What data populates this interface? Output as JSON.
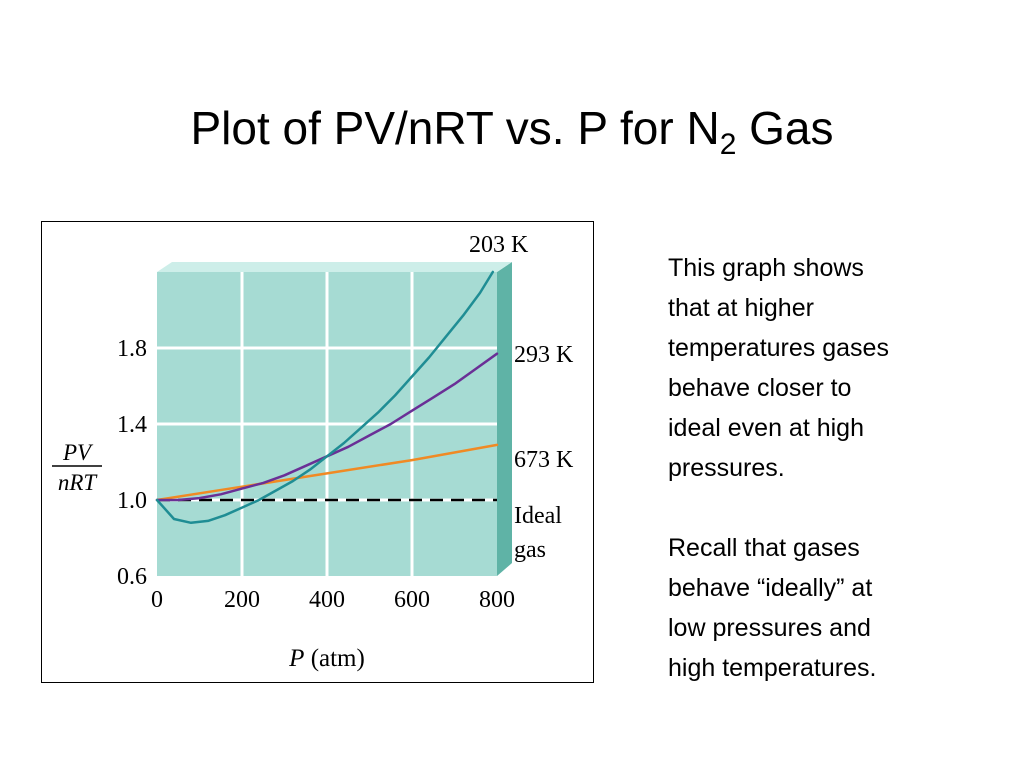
{
  "slide": {
    "title_main": "Plot of PV/nRT vs. P for N",
    "title_sub": "2",
    "title_tail": " Gas"
  },
  "body": {
    "para1": "This graph shows\nthat at higher\ntemperatures gases\nbehave closer to\nideal even at high\npressures.",
    "para2": "Recall that gases\nbehave “ideally” at\nlow pressures and\nhigh temperatures."
  },
  "colors": {
    "plot_bg": "#a6dbd3",
    "panel_dark": "#5fb3a6",
    "grid": "#ffffff",
    "ideal": "#000000"
  },
  "chart_data": {
    "type": "line",
    "title": "",
    "xlabel": "P (atm)",
    "ylabel": "PV/nRT",
    "ylabel_num": "PV",
    "ylabel_den": "nRT",
    "xlabel_italic": "P",
    "xlabel_unit": " (atm)",
    "xlim": [
      0,
      800
    ],
    "ylim": [
      0.6,
      2.2
    ],
    "xticks": [
      "0",
      "200",
      "400",
      "600",
      "800"
    ],
    "yticks": [
      "0.6",
      "1.0",
      "1.4",
      "1.8"
    ],
    "grid": true,
    "series": [
      {
        "name": "203 K",
        "color": "#1f8d94",
        "x": [
          0,
          40,
          80,
          120,
          160,
          200,
          240,
          280,
          320,
          360,
          400,
          440,
          480,
          520,
          560,
          600,
          640,
          680,
          720,
          760,
          790
        ],
        "y": [
          1.0,
          0.9,
          0.88,
          0.89,
          0.92,
          0.96,
          1.0,
          1.05,
          1.1,
          1.16,
          1.23,
          1.3,
          1.38,
          1.46,
          1.55,
          1.65,
          1.75,
          1.86,
          1.97,
          2.09,
          2.2
        ]
      },
      {
        "name": "293 K",
        "color": "#6a2f96",
        "x": [
          0,
          50,
          100,
          150,
          200,
          250,
          300,
          350,
          400,
          450,
          500,
          550,
          600,
          650,
          700,
          750,
          800
        ],
        "y": [
          1.0,
          1.0,
          1.01,
          1.03,
          1.06,
          1.09,
          1.13,
          1.18,
          1.23,
          1.28,
          1.34,
          1.4,
          1.47,
          1.54,
          1.61,
          1.69,
          1.77
        ]
      },
      {
        "name": "673 K",
        "color": "#f08a24",
        "x": [
          0,
          200,
          400,
          600,
          800
        ],
        "y": [
          1.0,
          1.07,
          1.14,
          1.21,
          1.29
        ]
      },
      {
        "name": "Ideal gas",
        "color": "#000000",
        "dashed": true,
        "x": [
          0,
          800
        ],
        "y": [
          1.0,
          1.0
        ]
      }
    ],
    "series_labels": [
      {
        "text": "203 K"
      },
      {
        "text": "293 K"
      },
      {
        "text": "673 K"
      },
      {
        "text": "Ideal"
      },
      {
        "text": "gas"
      }
    ]
  }
}
